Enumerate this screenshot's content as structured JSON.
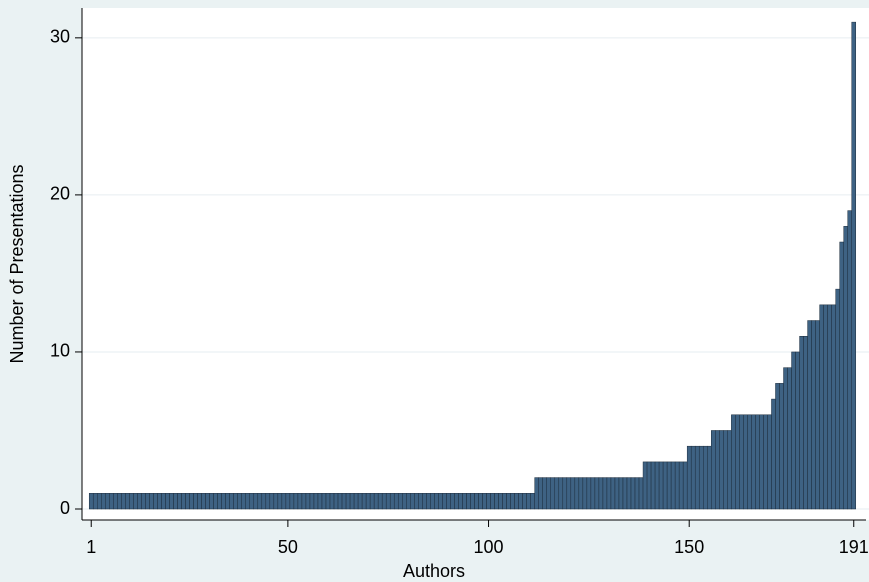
{
  "chart_data": {
    "type": "bar",
    "x_label": "Authors",
    "y_label": "Number of Presentations",
    "x": [
      1,
      2,
      3,
      4,
      5,
      6,
      7,
      8,
      9,
      10,
      11,
      12,
      13,
      14,
      15,
      16,
      17,
      18,
      19,
      20,
      21,
      22,
      23,
      24,
      25,
      26,
      27,
      28,
      29,
      30,
      31,
      32,
      33,
      34,
      35,
      36,
      37,
      38,
      39,
      40,
      41,
      42,
      43,
      44,
      45,
      46,
      47,
      48,
      49,
      50,
      51,
      52,
      53,
      54,
      55,
      56,
      57,
      58,
      59,
      60,
      61,
      62,
      63,
      64,
      65,
      66,
      67,
      68,
      69,
      70,
      71,
      72,
      73,
      74,
      75,
      76,
      77,
      78,
      79,
      80,
      81,
      82,
      83,
      84,
      85,
      86,
      87,
      88,
      89,
      90,
      91,
      92,
      93,
      94,
      95,
      96,
      97,
      98,
      99,
      100,
      101,
      102,
      103,
      104,
      105,
      106,
      107,
      108,
      109,
      110,
      111,
      112,
      113,
      114,
      115,
      116,
      117,
      118,
      119,
      120,
      121,
      122,
      123,
      124,
      125,
      126,
      127,
      128,
      129,
      130,
      131,
      132,
      133,
      134,
      135,
      136,
      137,
      138,
      139,
      140,
      141,
      142,
      143,
      144,
      145,
      146,
      147,
      148,
      149,
      150,
      151,
      152,
      153,
      154,
      155,
      156,
      157,
      158,
      159,
      160,
      161,
      162,
      163,
      164,
      165,
      166,
      167,
      168,
      169,
      170,
      171,
      172,
      173,
      174,
      175,
      176,
      177,
      178,
      179,
      180,
      181,
      182,
      183,
      184,
      185,
      186,
      187,
      188,
      189,
      190,
      191
    ],
    "values": [
      1,
      1,
      1,
      1,
      1,
      1,
      1,
      1,
      1,
      1,
      1,
      1,
      1,
      1,
      1,
      1,
      1,
      1,
      1,
      1,
      1,
      1,
      1,
      1,
      1,
      1,
      1,
      1,
      1,
      1,
      1,
      1,
      1,
      1,
      1,
      1,
      1,
      1,
      1,
      1,
      1,
      1,
      1,
      1,
      1,
      1,
      1,
      1,
      1,
      1,
      1,
      1,
      1,
      1,
      1,
      1,
      1,
      1,
      1,
      1,
      1,
      1,
      1,
      1,
      1,
      1,
      1,
      1,
      1,
      1,
      1,
      1,
      1,
      1,
      1,
      1,
      1,
      1,
      1,
      1,
      1,
      1,
      1,
      1,
      1,
      1,
      1,
      1,
      1,
      1,
      1,
      1,
      1,
      1,
      1,
      1,
      1,
      1,
      1,
      1,
      1,
      1,
      1,
      1,
      1,
      1,
      1,
      1,
      1,
      1,
      1,
      2,
      2,
      2,
      2,
      2,
      2,
      2,
      2,
      2,
      2,
      2,
      2,
      2,
      2,
      2,
      2,
      2,
      2,
      2,
      2,
      2,
      2,
      2,
      2,
      2,
      2,
      2,
      3,
      3,
      3,
      3,
      3,
      3,
      3,
      3,
      3,
      3,
      3,
      4,
      4,
      4,
      4,
      4,
      4,
      5,
      5,
      5,
      5,
      5,
      6,
      6,
      6,
      6,
      6,
      6,
      6,
      6,
      6,
      6,
      7,
      8,
      8,
      9,
      9,
      10,
      10,
      11,
      11,
      12,
      12,
      12,
      13,
      13,
      13,
      13,
      14,
      17,
      18,
      19,
      31
    ],
    "color": "#3e6283",
    "xlim": [
      -1.3,
      194.8
    ],
    "ylim": [
      -0.7,
      31.9
    ],
    "xticks": [
      1,
      50,
      100,
      150,
      191
    ],
    "yticks": [
      0,
      10,
      20,
      30
    ],
    "grid": true
  }
}
